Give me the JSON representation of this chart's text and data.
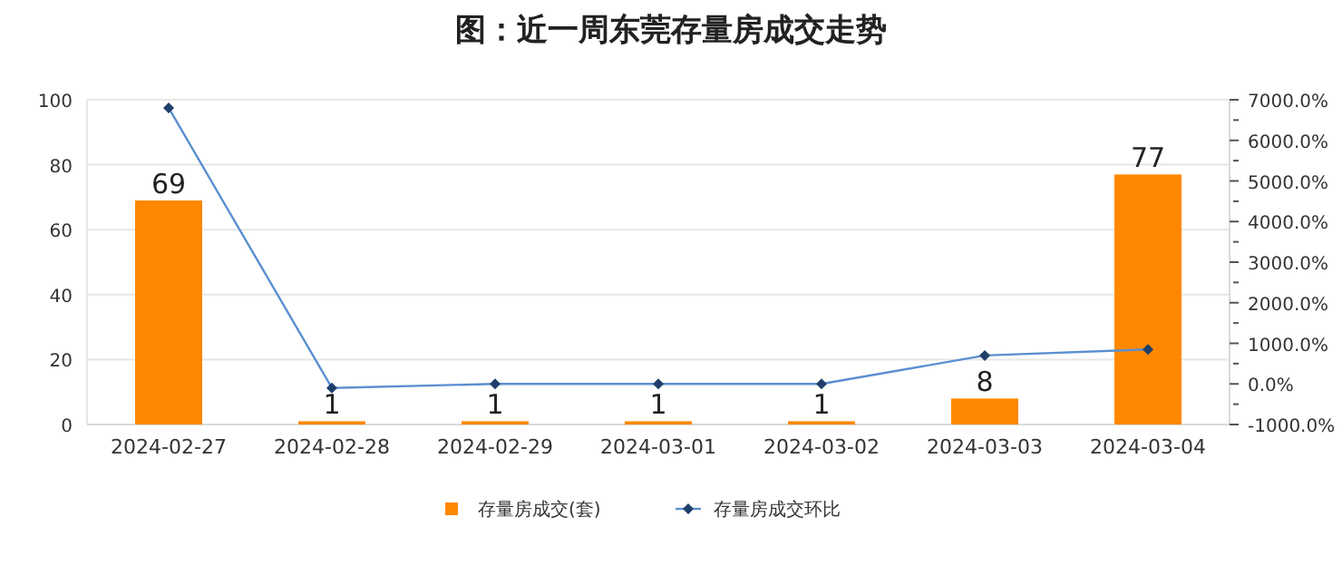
{
  "chart_data": {
    "type": "bar",
    "title": "图：近一周东莞存量房成交走势",
    "categories": [
      "2024-02-27",
      "2024-02-28",
      "2024-02-29",
      "2024-03-01",
      "2024-03-02",
      "2024-03-03",
      "2024-03-04"
    ],
    "series": [
      {
        "name": "存量房成交(套)",
        "color": "#ff8800",
        "values": [
          69,
          1,
          1,
          1,
          1,
          8,
          77
        ],
        "value_labels": [
          "69",
          "1",
          "1",
          "1",
          "1",
          "8",
          "77"
        ]
      },
      {
        "name": "存量房成交环比",
        "type": "line",
        "axis": "y2",
        "color": "#5b8fd0",
        "values": [
          6800,
          -100,
          0,
          0,
          0,
          700,
          850
        ]
      }
    ],
    "ylim": [
      0,
      100
    ],
    "yticks": [
      0,
      20,
      40,
      60,
      80,
      100
    ],
    "y2lim": [
      -1000,
      7000
    ],
    "y2ticks": [
      {
        "value": -1000,
        "label": "-1000.0%"
      },
      {
        "value": -500,
        "label": null
      },
      {
        "value": 0,
        "label": "0.0%"
      },
      {
        "value": 500,
        "label": null
      },
      {
        "value": 1000,
        "label": "1000.0%"
      },
      {
        "value": 1500,
        "label": null
      },
      {
        "value": 2000,
        "label": "2000.0%"
      },
      {
        "value": 2500,
        "label": null
      },
      {
        "value": 3000,
        "label": "3000.0%"
      },
      {
        "value": 3500,
        "label": null
      },
      {
        "value": 4000,
        "label": "4000.0%"
      },
      {
        "value": 4500,
        "label": null
      },
      {
        "value": 5000,
        "label": "5000.0%"
      },
      {
        "value": 5500,
        "label": null
      },
      {
        "value": 6000,
        "label": "6000.0%"
      },
      {
        "value": 6500,
        "label": null
      },
      {
        "value": 7000,
        "label": "7000.0%"
      }
    ],
    "grid": "y",
    "legend": "bottom",
    "marker": "diamond"
  }
}
